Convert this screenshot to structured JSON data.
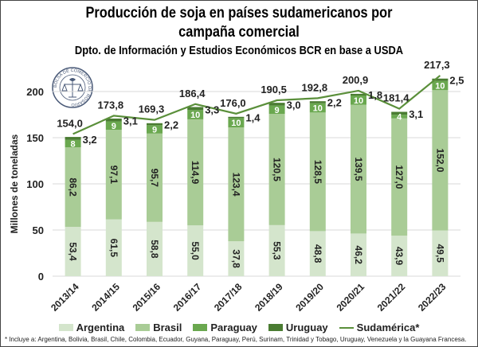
{
  "chart_data": {
    "type": "bar",
    "stacked": true,
    "title": "Producción de soja en países sudamericanos por campaña comercial",
    "title_line1": "Producción de soja en países sudamericanos por",
    "title_line2": "campaña comercial",
    "subtitle": "Dpto. de Información y Estudios Económicos BCR en base a USDA",
    "ylabel": "Millones de toneladas",
    "xlabel": "",
    "ylim": [
      0,
      220
    ],
    "yticks": [
      "0",
      "50",
      "100",
      "150",
      "200"
    ],
    "ytick_values": [
      0,
      50,
      100,
      150,
      200
    ],
    "grid": true,
    "legend_position": "bottom",
    "categories": [
      "2013/14",
      "2014/15",
      "2015/16",
      "2016/17",
      "2017/18",
      "2018/19",
      "2019/20",
      "2020/21",
      "2021/22",
      "2022/23"
    ],
    "series": [
      {
        "name": "Argentina",
        "type": "bar",
        "color": "#d4e5cc",
        "values": [
          53.4,
          61.5,
          58.8,
          55.0,
          37.8,
          55.3,
          48.8,
          46.2,
          43.9,
          49.5
        ],
        "labels": [
          "53,4",
          "61,5",
          "58,8",
          "55,0",
          "37,8",
          "55,3",
          "48,8",
          "46,2",
          "43,9",
          "49,5"
        ]
      },
      {
        "name": "Brasil",
        "type": "bar",
        "color": "#a9cc96",
        "values": [
          86.2,
          97.1,
          95.7,
          114.9,
          123.4,
          120.5,
          128.5,
          139.5,
          127.0,
          152.0
        ],
        "labels": [
          "86,2",
          "97,1",
          "95,7",
          "114,9",
          "123,4",
          "120,5",
          "128,5",
          "139,5",
          "127,0",
          "152,0"
        ]
      },
      {
        "name": "Paraguay",
        "type": "bar",
        "color": "#6aa84f",
        "values": [
          8,
          9,
          9,
          10,
          10,
          9,
          10,
          10,
          4,
          10
        ],
        "labels": [
          "8",
          "9",
          "9",
          "10",
          "10",
          "9",
          "10",
          "10",
          "4",
          "10"
        ]
      },
      {
        "name": "Uruguay",
        "type": "bar",
        "color": "#4a7c32",
        "values": [
          3.2,
          3.1,
          2.2,
          3.3,
          1.4,
          3.0,
          2.2,
          1.8,
          3.1,
          2.5
        ],
        "labels": [
          "3,2",
          "3,1",
          "2,2",
          "3,3",
          "1,4",
          "3,0",
          "2,2",
          "1,8",
          "3,1",
          "2,5"
        ]
      },
      {
        "name": "Sudamérica*",
        "type": "line",
        "color": "#5a8f3a",
        "values": [
          154.0,
          173.8,
          169.3,
          186.4,
          176.0,
          190.5,
          192.8,
          200.9,
          181.4,
          217.3
        ],
        "labels": [
          "154,0",
          "173,8",
          "169,3",
          "186,4",
          "176,0",
          "190,5",
          "192,8",
          "200,9",
          "181,4",
          "217,3"
        ]
      }
    ],
    "footnote": "* Incluye a: Argentina, Bolivia, Brasil, Chile, Colombia, Ecuador, Guyana, Paraguay, Perú, Surinam, Trinidad y Tobago, Uruguay, Venezuela y la Guayana Francesa.",
    "logo_text": "BOLSA DE COMERCIO DE ROSARIO"
  },
  "legend": [
    {
      "label": "Argentina",
      "color": "#d4e5cc",
      "kind": "bar"
    },
    {
      "label": "Brasil",
      "color": "#a9cc96",
      "kind": "bar"
    },
    {
      "label": "Paraguay",
      "color": "#6aa84f",
      "kind": "bar"
    },
    {
      "label": "Uruguay",
      "color": "#4a7c32",
      "kind": "bar"
    },
    {
      "label": "Sudamérica*",
      "color": "#5a8f3a",
      "kind": "line"
    }
  ]
}
